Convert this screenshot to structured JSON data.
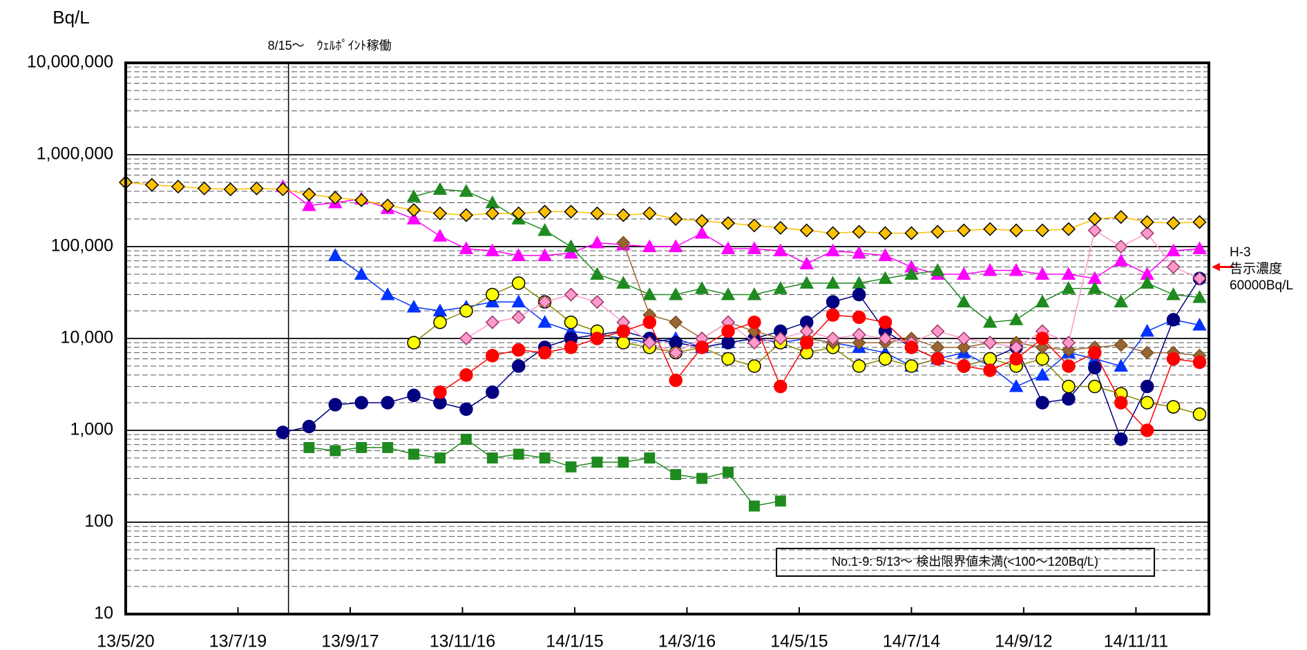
{
  "chart_data": {
    "type": "line",
    "y_label": "Bq/L",
    "log_scale": true,
    "grid": true,
    "ylim": [
      10,
      10000000
    ],
    "yticks": [
      10,
      100,
      {
        "value": 1000,
        "label": "1,000"
      },
      {
        "value": 10000,
        "label": "10,000"
      },
      {
        "value": 100000,
        "label": "100,000"
      },
      {
        "value": 1000000,
        "label": "1,000,000"
      },
      {
        "value": 10000000,
        "label": "10,000,000"
      }
    ],
    "yminorticks": [
      20,
      30,
      40,
      50,
      60,
      70,
      80,
      90,
      200,
      300,
      400,
      500,
      600,
      700,
      800,
      900,
      2000,
      3000,
      4000,
      5000,
      6000,
      7000,
      8000,
      9000,
      20000,
      30000,
      40000,
      50000,
      60000,
      70000,
      80000,
      90000,
      200000,
      300000,
      400000,
      500000,
      600000,
      700000,
      800000,
      900000,
      2000000,
      3000000,
      4000000,
      5000000,
      6000000,
      7000000,
      8000000,
      9000000
    ],
    "xlim": [
      "2013-05-20",
      "2014-12-20"
    ],
    "xticks": [
      {
        "value": "2013-05-20",
        "label": "13/5/20"
      },
      {
        "value": "2013-07-19",
        "label": "13/7/19"
      },
      {
        "value": "2013-09-17",
        "label": "13/9/17"
      },
      {
        "value": "2013-11-16",
        "label": "13/11/16"
      },
      {
        "value": "2014-01-15",
        "label": "14/1/15"
      },
      {
        "value": "2014-03-16",
        "label": "14/3/16"
      },
      {
        "value": "2014-05-15",
        "label": "14/5/15"
      },
      {
        "value": "2014-07-14",
        "label": "14/7/14"
      },
      {
        "value": "2014-09-12",
        "label": "14/9/12"
      },
      {
        "value": "2014-11-11",
        "label": "14/11/11"
      }
    ],
    "event": {
      "date": "2013-08-15",
      "label": "8/15～　ｳｪﾙﾎﾟｲﾝﾄ稼働"
    },
    "note": "No.1-9:  5/13～  検出限界値未満(<100～120Bq/L)",
    "reference": {
      "value": 60000,
      "lines": [
        "H-3",
        "告示濃度",
        "60000Bq/L"
      ],
      "color": "#ff0000"
    },
    "x": [
      "2013-05-20",
      "2013-06-03",
      "2013-06-17",
      "2013-07-01",
      "2013-07-15",
      "2013-07-29",
      "2013-08-12",
      "2013-08-26",
      "2013-09-09",
      "2013-09-23",
      "2013-10-07",
      "2013-10-21",
      "2013-11-04",
      "2013-11-18",
      "2013-12-02",
      "2013-12-16",
      "2013-12-30",
      "2014-01-13",
      "2014-01-27",
      "2014-02-10",
      "2014-02-24",
      "2014-03-10",
      "2014-03-24",
      "2014-04-07",
      "2014-04-21",
      "2014-05-05",
      "2014-05-19",
      "2014-06-02",
      "2014-06-16",
      "2014-06-30",
      "2014-07-14",
      "2014-07-28",
      "2014-08-11",
      "2014-08-25",
      "2014-09-08",
      "2014-09-22",
      "2014-10-06",
      "2014-10-20",
      "2014-11-03",
      "2014-11-17",
      "2014-12-01",
      "2014-12-15"
    ],
    "series": [
      {
        "marker": "square",
        "color": "#1f8a1f",
        "edgecolor": "#1f8a1f",
        "values": [
          null,
          null,
          null,
          null,
          null,
          null,
          null,
          650,
          600,
          650,
          650,
          550,
          500,
          800,
          500,
          550,
          500,
          400,
          450,
          450,
          500,
          330,
          300,
          350,
          150,
          170,
          null,
          null,
          null,
          null,
          null,
          null,
          null,
          null,
          null,
          null,
          null,
          null,
          null,
          null,
          null,
          null
        ]
      },
      {
        "marker": "triangle",
        "color": "#ff00ff",
        "edgecolor": "#ff00ff",
        "values": [
          null,
          null,
          null,
          null,
          null,
          null,
          450000,
          280000,
          300000,
          330000,
          260000,
          200000,
          130000,
          95000,
          90000,
          80000,
          80000,
          85000,
          110000,
          105000,
          100000,
          100000,
          140000,
          95000,
          95000,
          90000,
          65000,
          90000,
          85000,
          80000,
          60000,
          50000,
          50000,
          55000,
          55000,
          50000,
          50000,
          45000,
          70000,
          50000,
          90000,
          95000
        ]
      },
      {
        "marker": "triangle",
        "color": "#1f8a1f",
        "edgecolor": "#1f8a1f",
        "values": [
          null,
          null,
          null,
          null,
          null,
          null,
          null,
          null,
          null,
          null,
          null,
          350000,
          420000,
          400000,
          300000,
          200000,
          150000,
          100000,
          50000,
          40000,
          30000,
          30000,
          35000,
          30000,
          30000,
          35000,
          40000,
          40000,
          40000,
          45000,
          50000,
          55000,
          25000,
          15000,
          16000,
          25000,
          35000,
          35000,
          25000,
          40000,
          30000,
          28000
        ]
      },
      {
        "marker": "triangle",
        "color": "#0033ff",
        "edgecolor": "#0033ff",
        "values": [
          null,
          null,
          null,
          null,
          null,
          null,
          null,
          null,
          80000,
          50000,
          30000,
          22000,
          20000,
          22000,
          25000,
          25000,
          15000,
          12000,
          11000,
          10000,
          9000,
          10000,
          8000,
          9000,
          10000,
          9000,
          10000,
          9000,
          8000,
          7000,
          5000,
          6000,
          7000,
          5000,
          3000,
          4000,
          7000,
          6000,
          5000,
          12000,
          16000,
          14000
        ]
      },
      {
        "marker": "circle",
        "color": "#000080",
        "edgecolor": "#000080",
        "values": [
          null,
          null,
          null,
          null,
          null,
          null,
          950,
          1100,
          1900,
          2000,
          2000,
          2400,
          2000,
          1700,
          2600,
          5000,
          8000,
          10000,
          11000,
          12000,
          10000,
          9000,
          8000,
          9000,
          10000,
          12000,
          15000,
          25000,
          30000,
          12000,
          8000,
          6000,
          5000,
          6000,
          8000,
          2000,
          2200,
          4800,
          800,
          3000,
          16000,
          45000
        ]
      },
      {
        "marker": "circle",
        "color": "#ffff00",
        "edgecolor": "#000000",
        "values": [
          null,
          null,
          null,
          null,
          null,
          null,
          null,
          null,
          null,
          null,
          null,
          9000,
          15000,
          20000,
          30000,
          40000,
          25000,
          15000,
          12000,
          9000,
          8000,
          7000,
          8000,
          6000,
          5000,
          9000,
          7000,
          8000,
          5000,
          6000,
          5000,
          6000,
          5000,
          6000,
          5000,
          6000,
          3000,
          3000,
          2500,
          2000,
          1800,
          1500
        ]
      },
      {
        "marker": "diamond",
        "color": "#996633",
        "edgecolor": "#7a4f22",
        "values": [
          null,
          null,
          null,
          null,
          null,
          null,
          null,
          null,
          null,
          null,
          null,
          null,
          null,
          null,
          null,
          null,
          null,
          null,
          null,
          110000,
          18000,
          15000,
          10000,
          15000,
          12000,
          10000,
          10000,
          9000,
          9000,
          9000,
          10000,
          8000,
          8000,
          9000,
          9000,
          8000,
          7500,
          8000,
          8500,
          7000,
          7000,
          6500
        ]
      },
      {
        "marker": "diamond",
        "color": "#ff99cc",
        "edgecolor": "#993366",
        "values": [
          null,
          null,
          null,
          null,
          null,
          null,
          null,
          null,
          null,
          null,
          null,
          null,
          null,
          10000,
          15000,
          17000,
          25000,
          30000,
          25000,
          15000,
          9000,
          7000,
          10000,
          15000,
          9000,
          10000,
          12000,
          10000,
          11000,
          10000,
          9000,
          12000,
          10000,
          9000,
          8000,
          12000,
          9000,
          150000,
          100000,
          140000,
          60000,
          45000
        ]
      },
      {
        "marker": "circle",
        "color": "#ff0000",
        "edgecolor": "#ff0000",
        "values": [
          null,
          null,
          null,
          null,
          null,
          null,
          null,
          null,
          null,
          null,
          null,
          null,
          2600,
          4000,
          6500,
          7500,
          7000,
          8000,
          10000,
          12000,
          15000,
          3500,
          8000,
          12000,
          15000,
          3000,
          9000,
          18000,
          17000,
          15000,
          8000,
          6000,
          5000,
          4500,
          6000,
          10000,
          5000,
          7000,
          2000,
          1000,
          6000,
          5500
        ]
      },
      {
        "marker": "diamond",
        "color": "#ffc000",
        "edgecolor": "#000000",
        "values": [
          500000,
          470000,
          450000,
          430000,
          420000,
          430000,
          420000,
          370000,
          340000,
          320000,
          280000,
          250000,
          230000,
          220000,
          230000,
          230000,
          240000,
          240000,
          230000,
          220000,
          230000,
          200000,
          190000,
          180000,
          170000,
          160000,
          150000,
          140000,
          145000,
          140000,
          140000,
          145000,
          150000,
          155000,
          150000,
          150000,
          155000,
          200000,
          210000,
          185000,
          180000,
          185000
        ]
      }
    ]
  }
}
